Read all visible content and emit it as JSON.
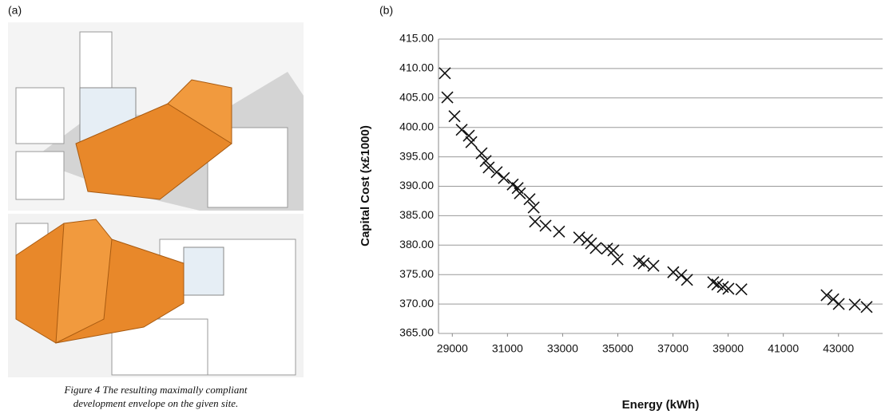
{
  "panel_labels": [
    "(a)",
    "(b)"
  ],
  "caption": [
    "Figure 4 The resulting maximally compliant",
    "development envelope on the given site."
  ],
  "chart_data": {
    "type": "scatter",
    "x_label": "Energy (kWh)",
    "y_label": "Capital Cost (x£1000)",
    "marker": "x",
    "color": "#111111",
    "grid": true,
    "xlim": [
      28500,
      44600
    ],
    "ylim": [
      365,
      415
    ],
    "xticks": [
      29000,
      31000,
      33000,
      35000,
      37000,
      39000,
      41000,
      43000
    ],
    "yticks": [
      {
        "value": 365,
        "label": "365.00"
      },
      {
        "value": 370,
        "label": "370.00"
      },
      {
        "value": 375,
        "label": "375.00"
      },
      {
        "value": 380,
        "label": "380.00"
      },
      {
        "value": 385,
        "label": "385.00"
      },
      {
        "value": 390,
        "label": "390.00"
      },
      {
        "value": 395,
        "label": "395.00"
      },
      {
        "value": 400,
        "label": "400.00"
      },
      {
        "value": 405,
        "label": "405.00"
      },
      {
        "value": 410,
        "label": "410.00"
      },
      {
        "value": 415,
        "label": "415.00"
      }
    ],
    "x": [
      28730,
      28820,
      29080,
      29340,
      29600,
      29690,
      30060,
      30210,
      30320,
      30610,
      30870,
      31190,
      31370,
      31450,
      31800,
      31950,
      32000,
      32380,
      32870,
      33600,
      33890,
      34030,
      34200,
      34610,
      34840,
      34990,
      35770,
      35940,
      36290,
      37010,
      37300,
      37510,
      38460,
      38610,
      38810,
      39010,
      39480,
      42570,
      42810,
      43010,
      43590,
      44020
    ],
    "y": [
      409.2,
      405.1,
      401.9,
      399.6,
      398.6,
      397.5,
      395.6,
      394.3,
      393.2,
      392.4,
      391.4,
      390.3,
      389.7,
      388.8,
      387.8,
      386.4,
      384.0,
      383.3,
      382.3,
      381.3,
      380.9,
      380.3,
      379.5,
      379.4,
      379.1,
      377.6,
      377.3,
      376.9,
      376.5,
      375.4,
      374.9,
      374.1,
      373.7,
      373.3,
      372.9,
      372.6,
      372.5,
      371.5,
      370.8,
      370.0,
      369.9,
      369.5
    ]
  }
}
